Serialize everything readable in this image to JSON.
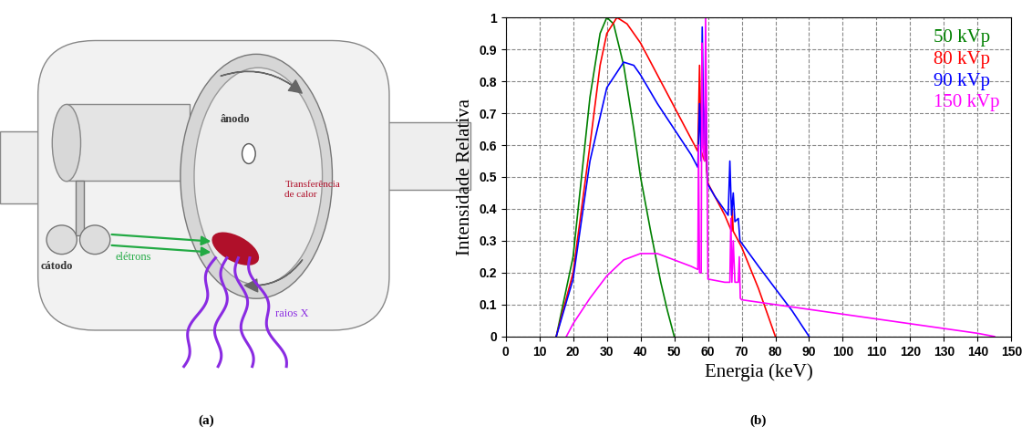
{
  "chart_data": {
    "type": "line",
    "x_label": "Energia (keV)",
    "y_label": "Intensidade Relativa",
    "xlim": [
      0,
      150
    ],
    "xticks": [
      0,
      10,
      20,
      30,
      40,
      50,
      60,
      70,
      80,
      90,
      100,
      110,
      120,
      130,
      140,
      150
    ],
    "ylim": [
      0,
      1
    ],
    "yticks": [
      0,
      0.1,
      0.2,
      0.3,
      0.4,
      0.5,
      0.6,
      0.7,
      0.8,
      0.9,
      1
    ],
    "grid": true,
    "legend": "upper right",
    "series": [
      {
        "name": "50 kVp",
        "color": "#008000",
        "x": [
          15,
          20,
          22,
          25,
          28,
          30,
          32,
          35,
          38,
          40,
          43,
          46,
          48,
          50
        ],
        "values": [
          0,
          0.25,
          0.45,
          0.75,
          0.95,
          1.0,
          0.98,
          0.85,
          0.65,
          0.5,
          0.33,
          0.17,
          0.08,
          0
        ]
      },
      {
        "name": "80 kVp",
        "color": "#ff0000",
        "x": [
          15,
          20,
          25,
          28,
          30,
          33,
          36,
          40,
          45,
          50,
          55,
          57,
          57.5,
          58,
          59,
          59.3,
          59.6,
          60,
          65,
          67,
          67.2,
          67.5,
          70,
          75,
          80
        ],
        "values": [
          0,
          0.2,
          0.6,
          0.85,
          0.95,
          1.0,
          0.98,
          0.92,
          0.82,
          0.72,
          0.62,
          0.58,
          0.85,
          0.58,
          0.55,
          0.72,
          0.52,
          0.48,
          0.38,
          0.33,
          0.4,
          0.33,
          0.28,
          0.15,
          0
        ]
      },
      {
        "name": "90 kVp",
        "color": "#0000ff",
        "x": [
          15,
          20,
          25,
          30,
          35,
          38,
          40,
          45,
          50,
          55,
          57,
          57.5,
          58,
          58.3,
          58.8,
          59.3,
          59.8,
          62,
          66,
          66.5,
          67,
          67.5,
          68,
          69,
          69.5,
          75,
          80,
          85,
          90
        ],
        "values": [
          0,
          0.18,
          0.55,
          0.78,
          0.86,
          0.85,
          0.82,
          0.73,
          0.65,
          0.57,
          0.53,
          0.73,
          0.55,
          0.97,
          0.6,
          0.75,
          0.48,
          0.44,
          0.38,
          0.55,
          0.38,
          0.45,
          0.36,
          0.37,
          0.3,
          0.22,
          0.15,
          0.08,
          0
        ]
      },
      {
        "name": "150 kVp",
        "color": "#ff00ff",
        "x": [
          18,
          20,
          25,
          30,
          35,
          40,
          45,
          50,
          55,
          57,
          57.2,
          57.5,
          58,
          58.2,
          58.5,
          59,
          59.3,
          59.6,
          60,
          65,
          66.5,
          66.8,
          67.1,
          67.5,
          68,
          69,
          69.3,
          69.6,
          70,
          80,
          90,
          100,
          110,
          120,
          130,
          140,
          145
        ],
        "values": [
          0,
          0.04,
          0.12,
          0.19,
          0.24,
          0.26,
          0.26,
          0.24,
          0.22,
          0.21,
          0.6,
          0.2,
          0.2,
          0.92,
          0.6,
          0.55,
          1.0,
          0.7,
          0.18,
          0.17,
          0.17,
          0.37,
          0.17,
          0.3,
          0.17,
          0.17,
          0.25,
          0.12,
          0.115,
          0.1,
          0.085,
          0.07,
          0.055,
          0.04,
          0.025,
          0.01,
          0
        ]
      }
    ]
  },
  "diagram": {
    "anode": "ânodo",
    "heat": "Transferência\nde calor",
    "cathode": "cátodo",
    "electrons": "elétrons",
    "xrays": "raios X"
  },
  "panel_labels": [
    "(a)",
    "(b)"
  ]
}
